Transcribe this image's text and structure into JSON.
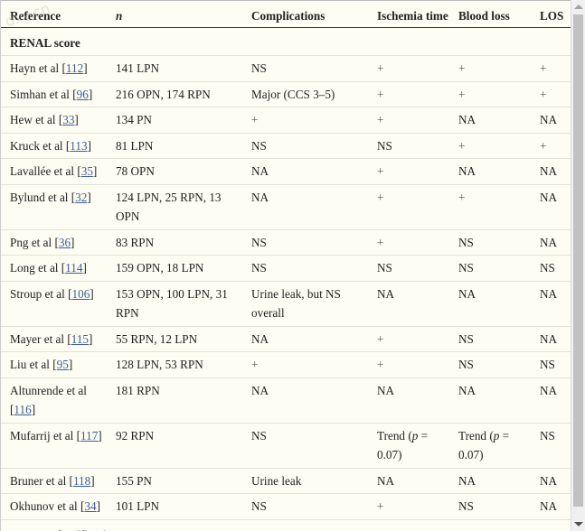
{
  "watermark": "dxy.cn",
  "headers": {
    "reference": "Reference",
    "n": "n",
    "complications": "Complications",
    "ischemia": "Ischemia time",
    "blood_loss": "Blood loss",
    "los": "LOS"
  },
  "section_renal": "RENAL score",
  "section_padua": "PADUA classification",
  "rows": [
    {
      "ref_pre": "Hayn et al [",
      "ref_num": "112",
      "ref_post": "]",
      "n": "141 LPN",
      "comp": "NS",
      "isch": "+",
      "blood": "+",
      "los": "+"
    },
    {
      "ref_pre": "Simhan et al [",
      "ref_num": "96",
      "ref_post": "]",
      "n": "216 OPN, 174 RPN",
      "comp": "Major (CCS 3–5)",
      "isch": "+",
      "blood": "+",
      "los": "+"
    },
    {
      "ref_pre": "Hew et al [",
      "ref_num": "33",
      "ref_post": "]",
      "n": "134 PN",
      "comp": "+",
      "isch": "+",
      "blood": "NA",
      "los": "NA"
    },
    {
      "ref_pre": "Kruck et al [",
      "ref_num": "113",
      "ref_post": "]",
      "n": "81 LPN",
      "comp": "NS",
      "isch": "NS",
      "blood": "+",
      "los": "+"
    },
    {
      "ref_pre": "Lavallée et al [",
      "ref_num": "35",
      "ref_post": "]",
      "n": "78 OPN",
      "comp": "NA",
      "isch": "+",
      "blood": "NA",
      "los": "NA"
    },
    {
      "ref_pre": "Bylund et al [",
      "ref_num": "32",
      "ref_post": "]",
      "n": "124 LPN, 25 RPN, 13 OPN",
      "comp": "NA",
      "isch": "+",
      "blood": "+",
      "los": "NA"
    },
    {
      "ref_pre": "Png et al [",
      "ref_num": "36",
      "ref_post": "]",
      "n": "83 RPN",
      "comp": "NS",
      "isch": "+",
      "blood": "NS",
      "los": "NA"
    },
    {
      "ref_pre": "Long et al [",
      "ref_num": "114",
      "ref_post": "]",
      "n": "159 OPN, 18 LPN",
      "comp": "NS",
      "isch": "NS",
      "blood": "NS",
      "los": "NS"
    },
    {
      "ref_pre": "Stroup et al [",
      "ref_num": "106",
      "ref_post": "]",
      "n": "153 OPN, 100 LPN, 31 RPN",
      "comp": "Urine leak, but NS overall",
      "isch": "NA",
      "blood": "NA",
      "los": "NA"
    },
    {
      "ref_pre": "Mayer et al [",
      "ref_num": "115",
      "ref_post": "]",
      "n": "55 RPN, 12 LPN",
      "comp": "NA",
      "isch": "+",
      "blood": "NS",
      "los": "NA"
    },
    {
      "ref_pre": "Liu et al [",
      "ref_num": "95",
      "ref_post": "]",
      "n": "128 LPN, 53 RPN",
      "comp": "+",
      "isch": "+",
      "blood": "NS",
      "los": "NS"
    },
    {
      "ref_pre": "Altunrende et al [",
      "ref_num": "116",
      "ref_post": "]",
      "n": "181 RPN",
      "comp": "NA",
      "isch": "NA",
      "blood": "NA",
      "los": "NA"
    },
    {
      "ref_pre": "Mufarrij et al [",
      "ref_num": "117",
      "ref_post": "]",
      "n": "92 RPN",
      "comp": "NS",
      "isch_pre": "Trend (",
      "isch_p": "p",
      "isch_post": " = 0.07)",
      "blood_pre": "Trend (",
      "blood_p": "p",
      "blood_post": " = 0.07)",
      "los": "NS"
    },
    {
      "ref_pre": "Bruner et al [",
      "ref_num": "118",
      "ref_post": "]",
      "n": "155 PN",
      "comp": "Urine leak",
      "isch": "NA",
      "blood": "NA",
      "los": "NA"
    },
    {
      "ref_pre": "Okhunov et al [",
      "ref_num": "34",
      "ref_post": "]",
      "n": "101 LPN",
      "comp": "NS",
      "isch": "+",
      "blood": "NS",
      "los": "NA"
    }
  ]
}
